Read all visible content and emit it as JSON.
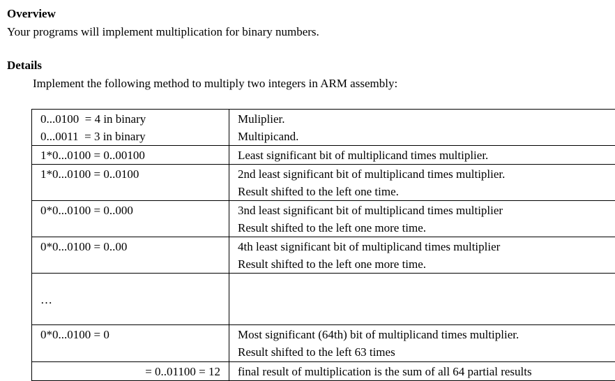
{
  "sections": {
    "overview": {
      "heading": "Overview",
      "text": "Your programs will implement multiplication for binary numbers."
    },
    "details": {
      "heading": "Details",
      "text": "Implement the following method to multiply two integers in ARM assembly:"
    }
  },
  "table": {
    "rows": [
      {
        "left": "0...0100  = 4 in binary\n0...0011  = 3 in binary",
        "right": "Muliplier.\nMultipicand."
      },
      {
        "left": "1*0...0100 = 0..00100",
        "right": "Least significant bit of multiplicand times multiplier."
      },
      {
        "left": "1*0...0100 = 0..0100",
        "right": "2nd least significant bit of multiplicand times multiplier.\nResult shifted to the left one time."
      },
      {
        "left": "0*0...0100 = 0..000",
        "right": "3nd least significant bit of multiplicand times multiplier\nResult shifted to the left one more time."
      },
      {
        "left": "0*0...0100 = 0..00",
        "right": "4th least significant bit of multiplicand times multiplier\nResult shifted to the left one more time."
      },
      {
        "left": "…",
        "right": ""
      },
      {
        "left": "0*0...0100 = 0",
        "right": "Most significant (64th) bit of multiplicand times multiplier.\nResult shifted to the left 63 times"
      },
      {
        "left": "= 0..01100 = 12",
        "right": "final result of multiplication is the sum of all 64 partial results"
      }
    ]
  },
  "colors": {
    "text": "#000000",
    "background": "#ffffff",
    "table_border": "#000000"
  }
}
